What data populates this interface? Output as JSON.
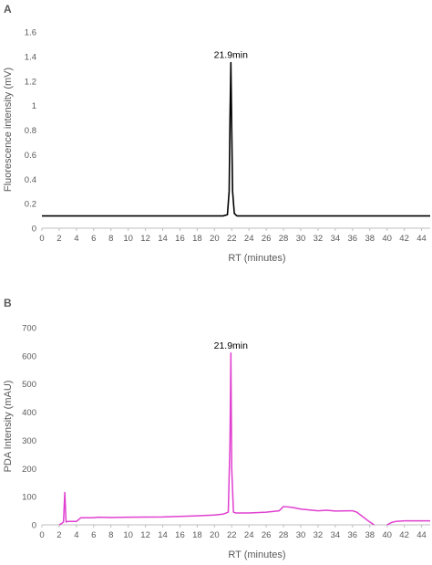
{
  "chart_data": [
    {
      "panel_label": "A",
      "type": "line",
      "xlabel": "RT (minutes)",
      "ylabel": "Fluorescence intensity (mV)",
      "xlim": [
        0,
        45
      ],
      "ylim": [
        0,
        1.6
      ],
      "xticks": [
        0,
        2,
        4,
        6,
        8,
        10,
        12,
        14,
        16,
        18,
        20,
        22,
        24,
        26,
        28,
        30,
        32,
        34,
        36,
        38,
        40,
        42,
        44
      ],
      "yticks": [
        0,
        0.2,
        0.4,
        0.6,
        0.8,
        1,
        1.2,
        1.4,
        1.6
      ],
      "grid": false,
      "line_color": "#000000",
      "series": [
        {
          "x": [
            0,
            2,
            4,
            6,
            8,
            10,
            12,
            14,
            16,
            18,
            20,
            21,
            21.5,
            21.7,
            21.8,
            21.9,
            22.0,
            22.1,
            22.3,
            22.6,
            23,
            24,
            26,
            28,
            30,
            32,
            34,
            36,
            38,
            40,
            42,
            44,
            45
          ],
          "y": [
            0.1,
            0.1,
            0.1,
            0.1,
            0.1,
            0.1,
            0.1,
            0.1,
            0.1,
            0.1,
            0.1,
            0.1,
            0.11,
            0.3,
            0.9,
            1.35,
            0.8,
            0.3,
            0.12,
            0.1,
            0.1,
            0.1,
            0.1,
            0.1,
            0.1,
            0.1,
            0.1,
            0.1,
            0.1,
            0.1,
            0.1,
            0.1,
            0.1
          ]
        }
      ],
      "annotations": [
        {
          "text": "21.9min",
          "x": 21.9,
          "y": 1.35
        }
      ]
    },
    {
      "panel_label": "B",
      "type": "line",
      "xlabel": "RT (minutes)",
      "ylabel": "PDA Intensity (mAU)",
      "xlim": [
        0,
        45
      ],
      "ylim": [
        0,
        700
      ],
      "xticks": [
        0,
        2,
        4,
        6,
        8,
        10,
        12,
        14,
        16,
        18,
        20,
        22,
        24,
        26,
        28,
        30,
        32,
        34,
        36,
        38,
        40,
        42,
        44
      ],
      "yticks": [
        0,
        100,
        200,
        300,
        400,
        500,
        600,
        700
      ],
      "grid": false,
      "line_color": "#e040d0",
      "series": [
        {
          "x": [
            2,
            2.3,
            2.5,
            2.65,
            2.8,
            3,
            4,
            4.5,
            5,
            6,
            6.5,
            8,
            10,
            14,
            18,
            20,
            21,
            21.6,
            21.8,
            21.9,
            22.0,
            22.2,
            22.5,
            24,
            26,
            27.5,
            28,
            29,
            30,
            32,
            33,
            34,
            36,
            36.5,
            38,
            38.5
          ],
          "y": [
            0,
            5,
            10,
            115,
            10,
            12,
            12,
            25,
            25,
            25,
            27,
            26,
            27,
            28,
            32,
            35,
            38,
            45,
            300,
            610,
            200,
            45,
            42,
            42,
            45,
            50,
            65,
            62,
            56,
            50,
            52,
            49,
            50,
            45,
            10,
            0
          ]
        },
        {
          "x": [
            40,
            40.5,
            41,
            42,
            44,
            45
          ],
          "y": [
            0,
            8,
            12,
            14,
            14,
            14
          ]
        }
      ],
      "annotations": [
        {
          "text": "21.9min",
          "x": 21.9,
          "y": 610
        }
      ]
    }
  ]
}
